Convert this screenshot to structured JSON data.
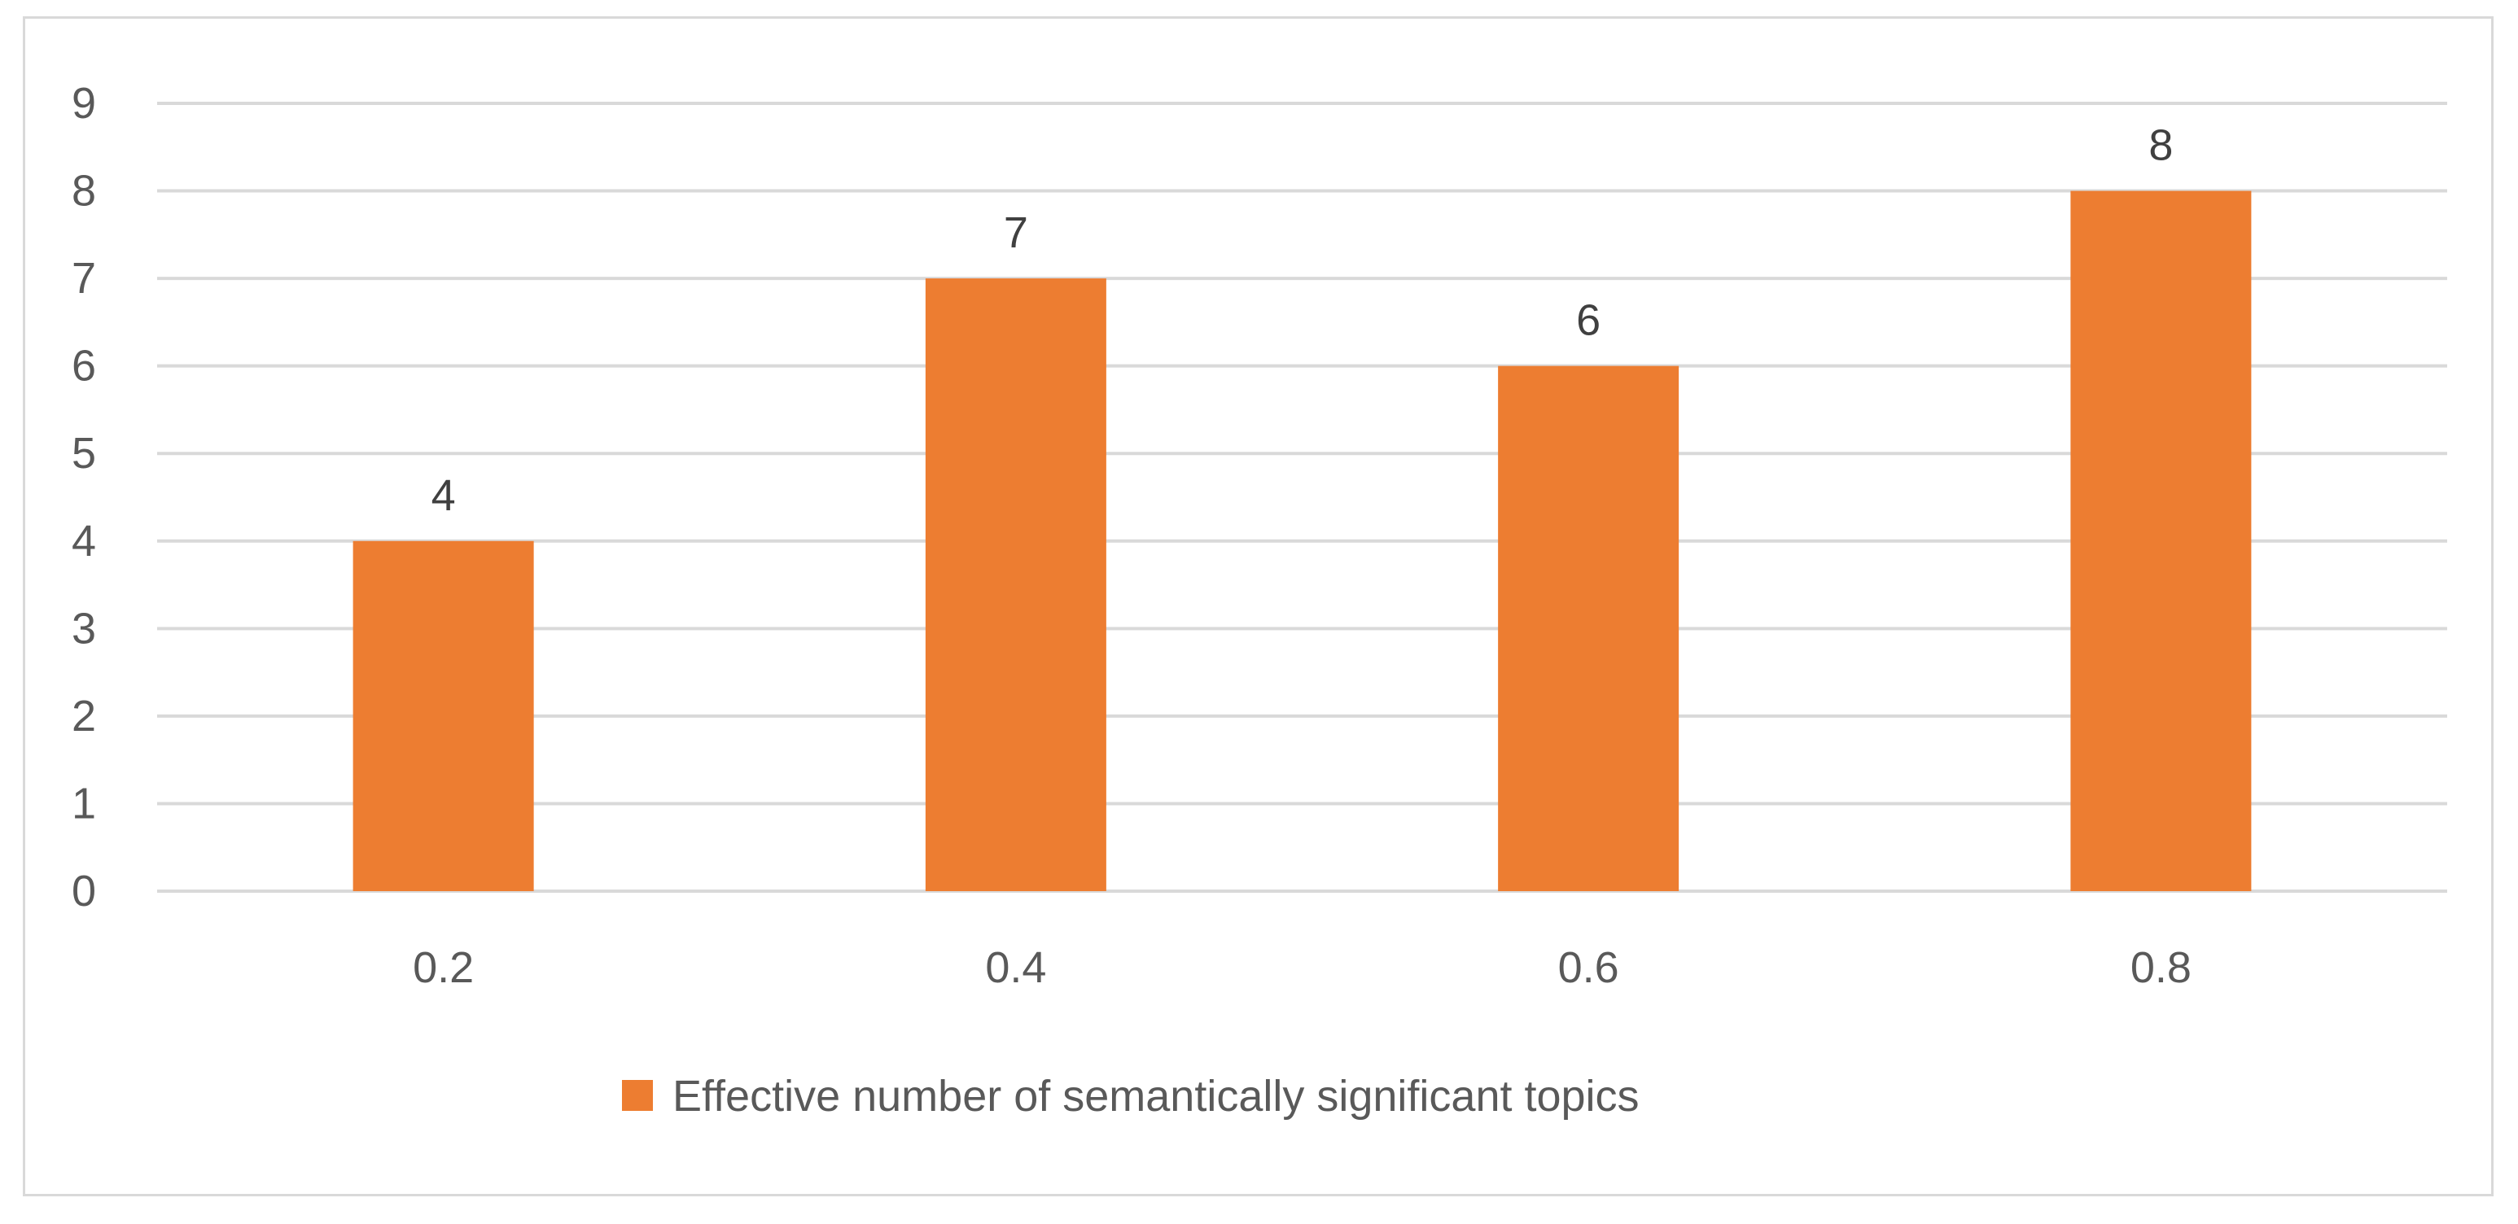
{
  "chart_data": {
    "type": "bar",
    "categories": [
      "0.2",
      "0.4",
      "0.6",
      "0.8"
    ],
    "series": [
      {
        "name": "Effective number of semantically significant topics",
        "values": [
          4,
          7,
          6,
          8
        ],
        "color": "#ED7D31"
      }
    ],
    "data_labels": [
      "4",
      "7",
      "6",
      "8"
    ],
    "ylim": [
      0,
      9
    ],
    "yticks": [
      "0",
      "1",
      "2",
      "3",
      "4",
      "5",
      "6",
      "7",
      "8",
      "9"
    ],
    "grid": true,
    "gridline_color": "#d9d9d9",
    "legend_position": "bottom",
    "text_color": "#595959",
    "data_label_color": "#404040"
  }
}
